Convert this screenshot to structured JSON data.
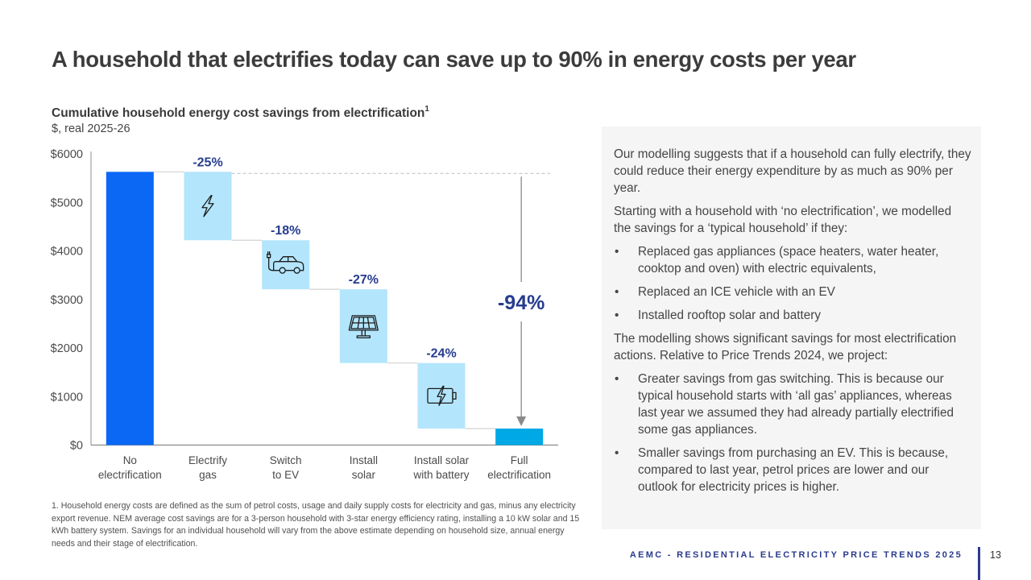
{
  "slide": {
    "title": "A household that electrifies today can save up to 90% in energy costs per year",
    "footer": "AEMC - RESIDENTIAL ELECTRICITY PRICE TRENDS 2025",
    "page_number": "13"
  },
  "chart_data": {
    "type": "bar",
    "subtype": "waterfall",
    "title": "Cumulative household energy cost savings from electrification",
    "title_footnote_marker": "1",
    "subtitle": "$, real 2025-26",
    "xlabel": "",
    "ylabel": "$, real 2025-26",
    "ylim": [
      0,
      6000
    ],
    "grid": false,
    "legend": "none",
    "categories": [
      "No electrification",
      "Electrify gas",
      "Switch to EV",
      "Install solar",
      "Install solar with battery",
      "Full electrification"
    ],
    "values": [
      5630,
      -1410,
      -1010,
      -1520,
      -1350,
      340
    ],
    "yticks": [
      {
        "value": 0,
        "label": "$0"
      },
      {
        "value": 1000,
        "label": "$1000"
      },
      {
        "value": 2000,
        "label": "$2000"
      },
      {
        "value": 3000,
        "label": "$3000"
      },
      {
        "value": 4000,
        "label": "$4000"
      },
      {
        "value": 5000,
        "label": "$5000"
      },
      {
        "value": 6000,
        "label": "$6000"
      }
    ],
    "steps": [
      {
        "category_lines": [
          "No",
          "electrification"
        ],
        "kind": "total",
        "value": 5630
      },
      {
        "category_lines": [
          "Electrify",
          "gas"
        ],
        "kind": "decrease",
        "value": -1410,
        "label": "-25%",
        "icon": "lightning-icon"
      },
      {
        "category_lines": [
          "Switch",
          "to EV"
        ],
        "kind": "decrease",
        "value": -1010,
        "label": "-18%",
        "icon": "electric-car-icon"
      },
      {
        "category_lines": [
          "Install",
          "solar"
        ],
        "kind": "decrease",
        "value": -1520,
        "label": "-27%",
        "icon": "solar-panel-icon"
      },
      {
        "category_lines": [
          "Install solar",
          "with battery"
        ],
        "kind": "decrease",
        "value": -1350,
        "label": "-24%",
        "icon": "battery-charging-icon"
      },
      {
        "category_lines": [
          "Full",
          "electrification"
        ],
        "kind": "total",
        "value": 340
      }
    ],
    "total_change_label": "-94%",
    "colors": {
      "start_total": "#0a68f5",
      "decrease": "#b3e5fc",
      "end_total": "#00a8e6",
      "label": "#263c8f",
      "connector": "#d2d2d2",
      "reference_line": "#bdbdbd",
      "arrow": "#8a8a8a",
      "icon_stroke": "#1c1c1c"
    }
  },
  "footnote": "1. Household energy costs are defined as the sum of petrol costs, usage and daily supply costs for electricity and gas, minus any electricity export revenue. NEM average cost savings are for a 3-person household with 3-star energy efficiency rating, installing a 10 kW solar and 15 kWh battery system. Savings for an individual household will vary from the above estimate depending on household size, annual energy needs and their stage of electrification.",
  "panel": {
    "para1": "Our modelling suggests that if a household can fully electrify, they could reduce their energy expenditure by as much as 90% per year.",
    "para2": "Starting with a household with ‘no electrification’, we modelled the savings for a ‘typical household’ if they:",
    "bullets1": [
      "Replaced gas appliances (space heaters, water heater, cooktop and oven) with electric equivalents,",
      "Replaced an ICE vehicle with an EV",
      "Installed rooftop solar and battery"
    ],
    "para3": "The modelling shows significant savings for most electrification actions. Relative to Price Trends 2024, we project:",
    "bullets2": [
      "Greater savings from gas switching. This is because our typical household starts with ‘all gas’ appliances, whereas last year we assumed they had already partially electrified some gas appliances.",
      "Smaller savings from purchasing an EV. This is because, compared to last year, petrol prices are lower and our outlook for electricity prices is higher."
    ],
    "bullet_glyph": "•"
  }
}
